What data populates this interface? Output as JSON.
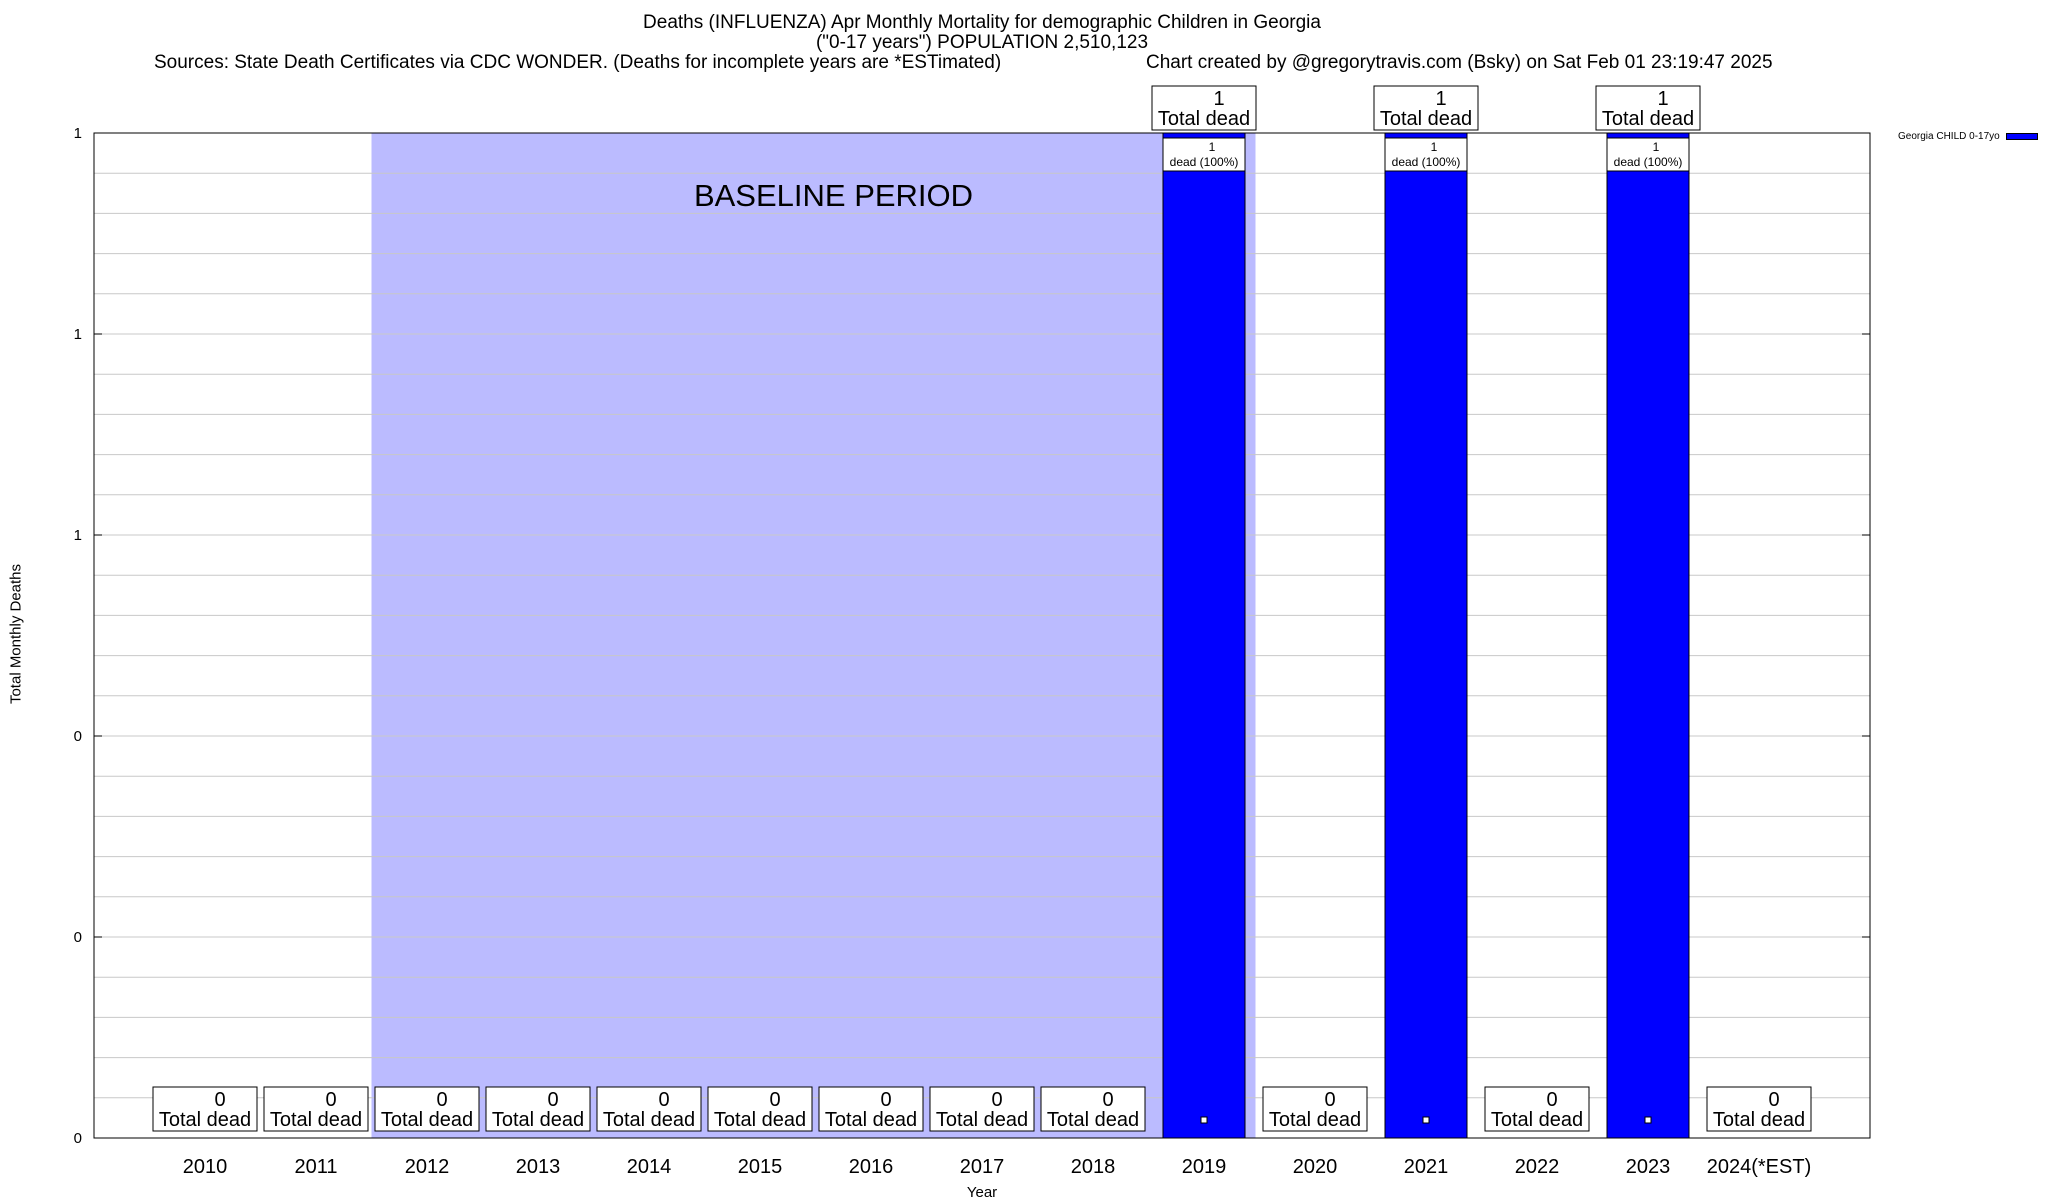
{
  "header": {
    "title_line1": "Deaths (INFLUENZA) Apr Monthly Mortality for demographic Children in Georgia",
    "title_line2": "(\"0-17 years\") POPULATION 2,510,123",
    "sources": "Sources: State Death Certificates via CDC WONDER. (Deaths for incomplete years are *ESTimated)",
    "credit": "Chart created by @gregorytravis.com (Bsky) on Sat Feb 01 23:19:47 2025"
  },
  "legend": {
    "label": "Georgia CHILD 0-17yo",
    "color": "#0000ff"
  },
  "chart_data": {
    "type": "bar",
    "title": "Deaths (INFLUENZA) Apr Monthly Mortality for demographic Children in Georgia",
    "xlabel": "Year",
    "ylabel": "Total Monthly Deaths",
    "ylim": [
      0,
      1
    ],
    "ytick_values": [
      0,
      0.2,
      0.4,
      0.6,
      0.8,
      1.0
    ],
    "ytick_labels": [
      "0",
      "0",
      "0",
      "1",
      "1",
      "1"
    ],
    "grid": true,
    "legend_position": "top-right",
    "categories": [
      "2010",
      "2011",
      "2012",
      "2013",
      "2014",
      "2015",
      "2016",
      "2017",
      "2018",
      "2019",
      "2020",
      "2021",
      "2022",
      "2023",
      "2024(*EST)"
    ],
    "series": [
      {
        "name": "Georgia CHILD 0-17yo",
        "color": "#0000ff",
        "values": [
          0,
          0,
          0,
          0,
          0,
          0,
          0,
          0,
          0,
          1,
          0,
          1,
          0,
          1,
          0
        ]
      }
    ],
    "total_labels": [
      "0",
      "0",
      "0",
      "0",
      "0",
      "0",
      "0",
      "0",
      "0",
      "1",
      "0",
      "1",
      "0",
      "1",
      "0"
    ],
    "total_suffix": "Total dead",
    "inner_labels": [
      "",
      "",
      "",
      "",
      "",
      "",
      "",
      "",
      "",
      "1",
      "",
      "1",
      "",
      "1",
      ""
    ],
    "inner_suffix": "dead (100%)",
    "baseline": {
      "label": "BASELINE PERIOD",
      "start": "2012",
      "end": "2019",
      "color": "#bbbbff"
    }
  }
}
